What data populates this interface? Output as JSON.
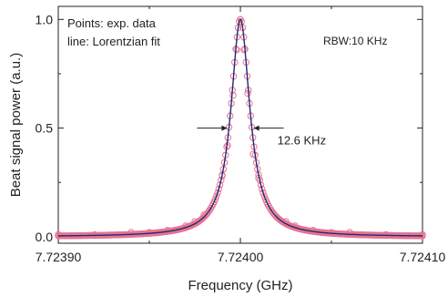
{
  "chart_data": {
    "type": "scatter",
    "xlabel": "Frequency (GHz)",
    "ylabel": "Beat signal power (a.u.)",
    "xlim": [
      7.7239,
      7.7241
    ],
    "ylim": [
      -0.03,
      1.06
    ],
    "x_ticks": [
      7.7239,
      7.724,
      7.7241
    ],
    "x_tick_labels": [
      "7.72390",
      "7.72400",
      "7.72410"
    ],
    "y_ticks": [
      0.0,
      0.5,
      1.0
    ],
    "y_tick_labels": [
      "0.0",
      "0.5",
      "1.0"
    ],
    "grid": false,
    "legend_note": [
      "Points: exp. data",
      "line: Lorentzian fit"
    ],
    "rbw_label": "RBW:10 KHz",
    "fwhm_label": "12.6 KHz",
    "fit": {
      "model": "lorentzian",
      "center": 7.724,
      "fwhm": 1.26e-05,
      "peak": 1.0,
      "baseline": 0.0
    },
    "series": [
      {
        "role": "exp-data",
        "color": "#e8738f",
        "x": [
          7.7239,
          7.72392,
          7.72394,
          7.72395,
          7.72396,
          7.72397,
          7.723975,
          7.72398,
          7.723985,
          7.72399,
          7.723993,
          7.723996,
          7.723998,
          7.724,
          7.724002,
          7.724004,
          7.724007,
          7.72401,
          7.724015,
          7.72402,
          7.724025,
          7.72403,
          7.72404,
          7.72405,
          7.72406,
          7.72408,
          7.7241
        ],
        "y": [
          0.01,
          0.01,
          0.02,
          0.02,
          0.03,
          0.05,
          0.07,
          0.1,
          0.15,
          0.28,
          0.42,
          0.65,
          0.86,
          1.0,
          0.86,
          0.66,
          0.38,
          0.27,
          0.15,
          0.09,
          0.07,
          0.05,
          0.03,
          0.02,
          0.02,
          0.01,
          0.01
        ]
      },
      {
        "role": "lorentzian-fit",
        "color": "#1f2a7a"
      }
    ]
  }
}
